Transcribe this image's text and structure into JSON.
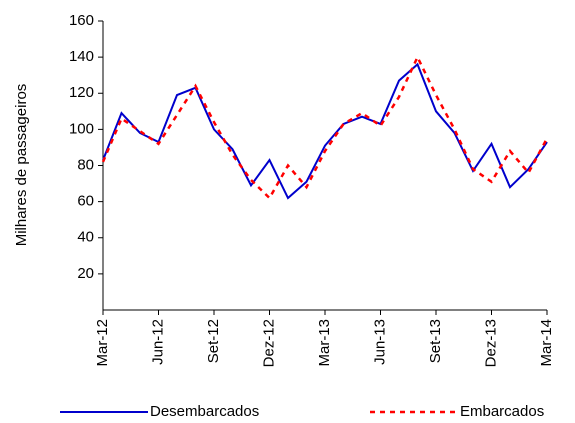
{
  "chart_data": {
    "type": "line",
    "y_label": "Milhares de passageiros",
    "categories": [
      "Mar-12",
      null,
      null,
      "Jun-12",
      null,
      null,
      "Set-12",
      null,
      null,
      "Dez-12",
      null,
      null,
      "Mar-13",
      null,
      null,
      "Jun-13",
      null,
      null,
      "Set-13",
      null,
      null,
      "Dez-13",
      null,
      null,
      "Mar-14"
    ],
    "series": [
      {
        "name": "Desembarcados",
        "color": "#0000cc",
        "dashed": false,
        "values": [
          83,
          109,
          98,
          93,
          119,
          123,
          100,
          89,
          69,
          83,
          62,
          71,
          91,
          103,
          107,
          103,
          127,
          136,
          110,
          98,
          77,
          92,
          68,
          78,
          93
        ]
      },
      {
        "name": "Embarcados",
        "color": "#ff0000",
        "dashed": true,
        "values": [
          82,
          106,
          99,
          92,
          108,
          124,
          104,
          86,
          72,
          62,
          80,
          68,
          88,
          103,
          109,
          102,
          118,
          140,
          119,
          100,
          78,
          71,
          88,
          76,
          95
        ]
      }
    ],
    "ylim": [
      0,
      160
    ],
    "yticks": [
      20,
      40,
      60,
      80,
      100,
      120,
      140,
      160
    ]
  }
}
